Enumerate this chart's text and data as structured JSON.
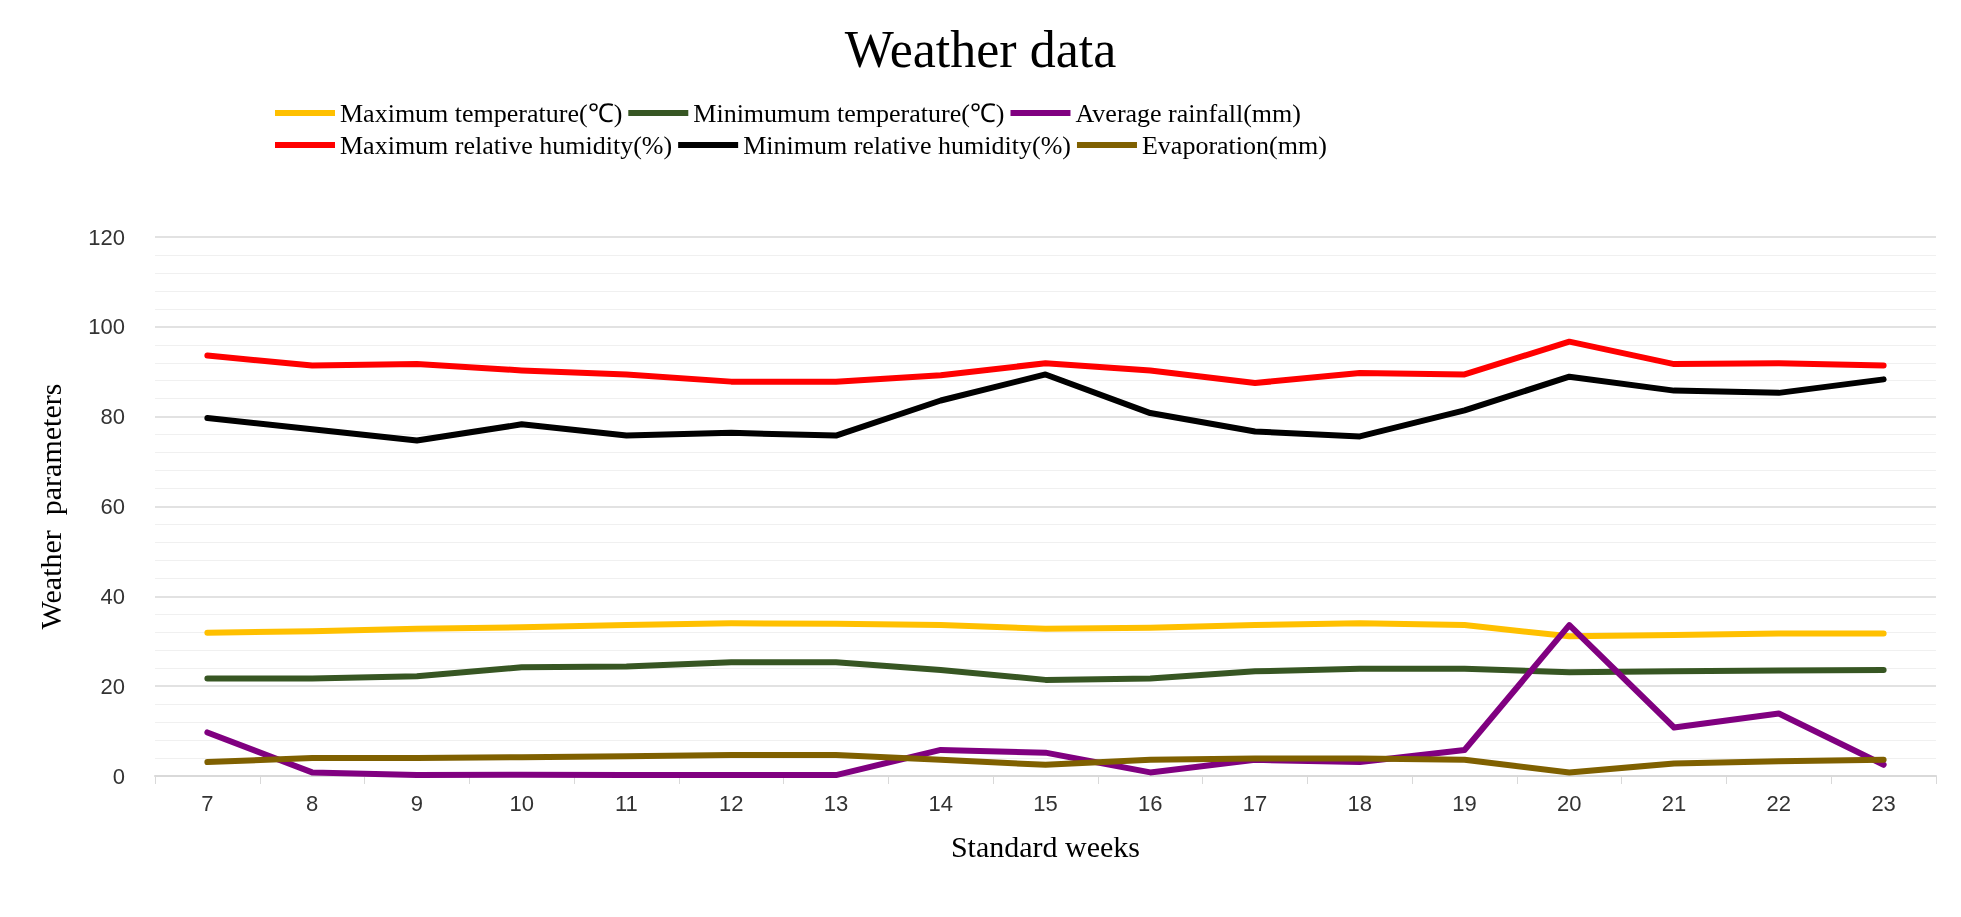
{
  "chart_data": {
    "type": "line",
    "title": "Weather data",
    "xlabel": "Standard weeks",
    "ylabel": "Weather  parameters",
    "categories": [
      "7",
      "8",
      "9",
      "10",
      "11",
      "12",
      "13",
      "14",
      "15",
      "16",
      "17",
      "18",
      "19",
      "20",
      "21",
      "22",
      "23"
    ],
    "series": [
      {
        "name": "Maximum temperature(℃)",
        "color": "#ffc000",
        "values": [
          31.9,
          32.2,
          32.8,
          33.1,
          33.6,
          34,
          33.9,
          33.6,
          32.8,
          33,
          33.6,
          34,
          33.6,
          31.1,
          31.4,
          31.7,
          31.7
        ]
      },
      {
        "name": "Minimumum temperature(℃)",
        "color": "#375623",
        "values": [
          21.7,
          21.7,
          22.2,
          24.2,
          24.4,
          25.3,
          25.3,
          23.6,
          21.4,
          21.7,
          23.3,
          23.9,
          23.9,
          23.1,
          23.3,
          23.5,
          23.6
        ]
      },
      {
        "name": "Average rainfall(mm)",
        "color": "#800080",
        "values": [
          9.7,
          0.8,
          0.2,
          0.3,
          0.2,
          0.2,
          0.2,
          5.8,
          5.2,
          0.8,
          3.6,
          3.1,
          5.8,
          33.6,
          10.8,
          13.9,
          2.5
        ]
      },
      {
        "name": "Maximum relative humidity(%)",
        "color": "#ff0000",
        "values": [
          93.6,
          91.4,
          91.7,
          90.3,
          89.4,
          87.8,
          87.8,
          89.2,
          91.9,
          90.3,
          87.5,
          89.7,
          89.4,
          96.7,
          91.7,
          91.9,
          91.4
        ]
      },
      {
        "name": "Minimum relative humidity(%)",
        "color": "#000000",
        "values": [
          79.7,
          77.2,
          74.7,
          78.3,
          75.8,
          76.4,
          75.8,
          83.6,
          89.4,
          80.8,
          76.7,
          75.6,
          81.4,
          88.9,
          85.8,
          85.3,
          88.3
        ]
      },
      {
        "name": "Evaporation(mm)",
        "color": "#7f6000",
        "values": [
          3.1,
          4,
          4,
          4.2,
          4.4,
          4.7,
          4.7,
          3.6,
          2.5,
          3.6,
          3.9,
          3.9,
          3.6,
          0.8,
          2.8,
          3.3,
          3.6
        ]
      }
    ],
    "ylim": [
      0,
      120
    ],
    "yticks": [
      0,
      20,
      40,
      60,
      80,
      100,
      120
    ],
    "grid": "y",
    "legend": "top",
    "marker": "none",
    "line_style": "solid"
  }
}
